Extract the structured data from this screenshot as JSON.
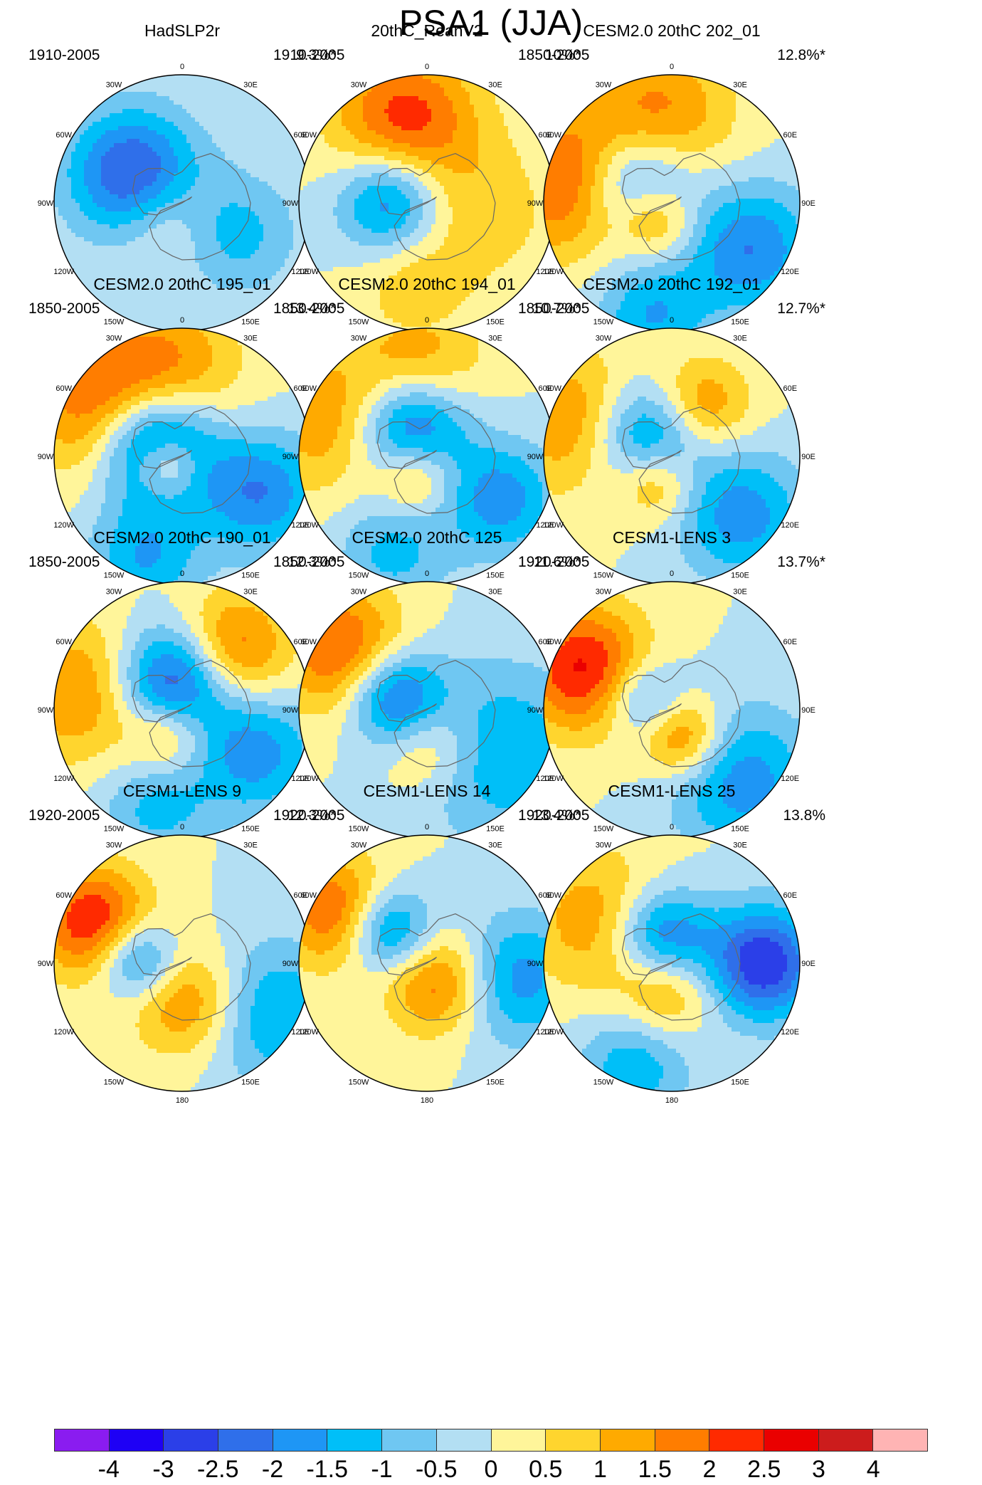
{
  "title": "PSA1 (JJA)",
  "longitude_labels": [
    "0",
    "30E",
    "60E",
    "90E",
    "120E",
    "150E",
    "180",
    "150W",
    "120W",
    "90W",
    "60W",
    "30W"
  ],
  "panels": [
    {
      "title": "HadSLP2r",
      "period": "1910-2005",
      "percent": "9.3%*",
      "anomalies": [
        {
          "lon": -120,
          "colat": 20,
          "amp": -2.7,
          "r": 16
        },
        {
          "lon": 60,
          "colat": 22,
          "amp": -1.2,
          "r": 15
        },
        {
          "lon": -45,
          "colat": 8,
          "amp": 1.0,
          "r": 12
        }
      ]
    },
    {
      "title": "20thC_ReanV2",
      "period": "1910-2005",
      "percent": "10%*",
      "anomalies": [
        {
          "lon": -95,
          "colat": 13,
          "amp": -2.3,
          "r": 13
        },
        {
          "lon": -165,
          "colat": 30,
          "amp": 2.3,
          "r": 18
        },
        {
          "lon": -10,
          "colat": 30,
          "amp": 0.8,
          "r": 14
        },
        {
          "lon": 80,
          "colat": 20,
          "amp": 0.8,
          "r": 18
        }
      ]
    },
    {
      "title": "CESM2.0 20thC 202_01",
      "period": "1850-2005",
      "percent": "12.8%*",
      "anomalies": [
        {
          "lon": -120,
          "colat": 14,
          "amp": -2.5,
          "r": 14
        },
        {
          "lon": -100,
          "colat": 38,
          "amp": 2.2,
          "r": 18
        },
        {
          "lon": -170,
          "colat": 30,
          "amp": 1.8,
          "r": 18
        },
        {
          "lon": 60,
          "colat": 32,
          "amp": -2.0,
          "r": 16
        },
        {
          "lon": -10,
          "colat": 40,
          "amp": -1.5,
          "r": 14
        },
        {
          "lon": -45,
          "colat": 8,
          "amp": 1.8,
          "r": 10
        }
      ]
    },
    {
      "title": "CESM2.0 20thC 195_01",
      "period": "1850-2005",
      "percent": "13.4%*",
      "anomalies": [
        {
          "lon": -115,
          "colat": 10,
          "amp": -3.6,
          "r": 14
        },
        {
          "lon": -120,
          "colat": 35,
          "amp": 1.8,
          "r": 18
        },
        {
          "lon": -170,
          "colat": 30,
          "amp": 1.6,
          "r": 18
        },
        {
          "lon": 65,
          "colat": 30,
          "amp": -2.0,
          "r": 15
        },
        {
          "lon": -20,
          "colat": 38,
          "amp": -1.5,
          "r": 14
        },
        {
          "lon": -60,
          "colat": 6,
          "amp": 2.2,
          "r": 8
        }
      ]
    },
    {
      "title": "CESM2.0 20thC 194_01",
      "period": "1850-2005",
      "percent": "10.7%*",
      "anomalies": [
        {
          "lon": -150,
          "colat": 12,
          "amp": -3.0,
          "r": 14
        },
        {
          "lon": -110,
          "colat": 35,
          "amp": 1.5,
          "r": 18
        },
        {
          "lon": -175,
          "colat": 32,
          "amp": 1.5,
          "r": 16
        },
        {
          "lon": 60,
          "colat": 30,
          "amp": -1.8,
          "r": 14
        },
        {
          "lon": -20,
          "colat": 35,
          "amp": -1.2,
          "r": 14
        },
        {
          "lon": -30,
          "colat": 8,
          "amp": 1.6,
          "r": 10
        }
      ]
    },
    {
      "title": "CESM2.0 20thC 192_01",
      "period": "1850-2005",
      "percent": "12.7%*",
      "anomalies": [
        {
          "lon": -130,
          "colat": 10,
          "amp": -2.6,
          "r": 14
        },
        {
          "lon": -110,
          "colat": 36,
          "amp": 1.6,
          "r": 18
        },
        {
          "lon": 150,
          "colat": 20,
          "amp": 1.8,
          "r": 12
        },
        {
          "lon": 50,
          "colat": 32,
          "amp": -1.8,
          "r": 16
        },
        {
          "lon": -30,
          "colat": 10,
          "amp": 1.8,
          "r": 10
        }
      ]
    },
    {
      "title": "CESM2.0 20thC 190_01",
      "period": "1850-2005",
      "percent": "12.3%*",
      "anomalies": [
        {
          "lon": -160,
          "colat": 10,
          "amp": -3.0,
          "r": 14
        },
        {
          "lon": -100,
          "colat": 36,
          "amp": 1.6,
          "r": 18
        },
        {
          "lon": 140,
          "colat": 28,
          "amp": 2.0,
          "r": 14
        },
        {
          "lon": 60,
          "colat": 30,
          "amp": -1.8,
          "r": 15
        },
        {
          "lon": -15,
          "colat": 35,
          "amp": -1.2,
          "r": 14
        },
        {
          "lon": -30,
          "colat": 10,
          "amp": 1.6,
          "r": 10
        }
      ]
    },
    {
      "title": "CESM2.0 20thC 125",
      "period": "1850-2005",
      "percent": "11.6%*",
      "anomalies": [
        {
          "lon": -110,
          "colat": 12,
          "amp": -2.6,
          "r": 12
        },
        {
          "lon": -125,
          "colat": 36,
          "amp": 2.2,
          "r": 16
        },
        {
          "lon": 60,
          "colat": 30,
          "amp": -1.5,
          "r": 22
        },
        {
          "lon": 0,
          "colat": 12,
          "amp": 1.3,
          "r": 12
        }
      ]
    },
    {
      "title": "CESM1-LENS 3",
      "period": "1920-2005",
      "percent": "13.7%*",
      "anomalies": [
        {
          "lon": -110,
          "colat": 10,
          "amp": -1.6,
          "r": 10
        },
        {
          "lon": -115,
          "colat": 34,
          "amp": 2.6,
          "r": 16
        },
        {
          "lon": 20,
          "colat": 10,
          "amp": 2.0,
          "r": 10
        },
        {
          "lon": 45,
          "colat": 35,
          "amp": -1.8,
          "r": 18
        }
      ]
    },
    {
      "title": "CESM1-LENS 9",
      "period": "1920-2005",
      "percent": "12.3%*",
      "anomalies": [
        {
          "lon": -95,
          "colat": 16,
          "amp": -2.2,
          "r": 10
        },
        {
          "lon": -115,
          "colat": 34,
          "amp": 2.6,
          "r": 14
        },
        {
          "lon": 10,
          "colat": 14,
          "amp": 1.8,
          "r": 14
        },
        {
          "lon": 60,
          "colat": 35,
          "amp": -1.6,
          "r": 18
        }
      ]
    },
    {
      "title": "CESM1-LENS 14",
      "period": "1920-2005",
      "percent": "13.4%*",
      "anomalies": [
        {
          "lon": -130,
          "colat": 18,
          "amp": -2.4,
          "r": 11
        },
        {
          "lon": -120,
          "colat": 36,
          "amp": 2.2,
          "r": 14
        },
        {
          "lon": 30,
          "colat": 8,
          "amp": 2.0,
          "r": 13
        },
        {
          "lon": 80,
          "colat": 32,
          "amp": -1.8,
          "r": 16
        }
      ]
    },
    {
      "title": "CESM1-LENS 25",
      "period": "1920-2005",
      "percent": "13.8%",
      "anomalies": [
        {
          "lon": -160,
          "colat": 10,
          "amp": -2.4,
          "r": 12
        },
        {
          "lon": 90,
          "colat": 32,
          "amp": -3.0,
          "r": 14
        },
        {
          "lon": -20,
          "colat": 38,
          "amp": -1.4,
          "r": 14
        },
        {
          "lon": -120,
          "colat": 30,
          "amp": 1.4,
          "r": 18
        },
        {
          "lon": -10,
          "colat": 10,
          "amp": 1.4,
          "r": 12
        }
      ]
    }
  ],
  "colorbar": {
    "labels": [
      "-4",
      "-3",
      "-2.5",
      "-2",
      "-1.5",
      "-1",
      "-0.5",
      "0",
      "0.5",
      "1",
      "1.5",
      "2",
      "2.5",
      "3",
      "4"
    ],
    "levels": [
      -4,
      -3,
      -2.5,
      -2,
      -1.5,
      -1,
      -0.5,
      0,
      0.5,
      1,
      1.5,
      2,
      2.5,
      3,
      4
    ],
    "colors": [
      "#8a1cf0",
      "#1e00f5",
      "#2b3fe8",
      "#2f6fea",
      "#1e96f5",
      "#00bff8",
      "#6fc7f2",
      "#b3dff3",
      "#fff59a",
      "#ffd52e",
      "#ffaa00",
      "#ff7d00",
      "#ff2a00",
      "#ea0000",
      "#cc1c1c",
      "#ffb4b4"
    ]
  }
}
